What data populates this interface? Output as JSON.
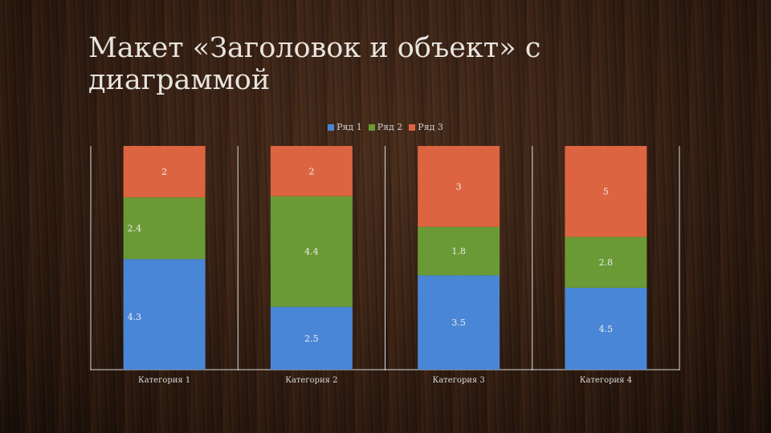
{
  "slide": {
    "title": "Макет «Заголовок и объект» с диаграммой"
  },
  "chart_data": {
    "type": "bar",
    "stacked": true,
    "categories": [
      "Категория 1",
      "Категория 2",
      "Категория 3",
      "Категория 4"
    ],
    "series": [
      {
        "name": "Ряд 1",
        "values": [
          4.3,
          2.5,
          3.5,
          4.5
        ],
        "color": "#4a86d6"
      },
      {
        "name": "Ряд 2",
        "values": [
          2.4,
          4.4,
          1.8,
          2.8
        ],
        "color": "#6a9a35"
      },
      {
        "name": "Ряд 3",
        "values": [
          2,
          2,
          3,
          5
        ],
        "color": "#dd6440"
      }
    ],
    "stack_mode": "percent",
    "legend": "top",
    "grid": false,
    "axis_color": "#d9d9d9",
    "label_color": "#ededed"
  }
}
